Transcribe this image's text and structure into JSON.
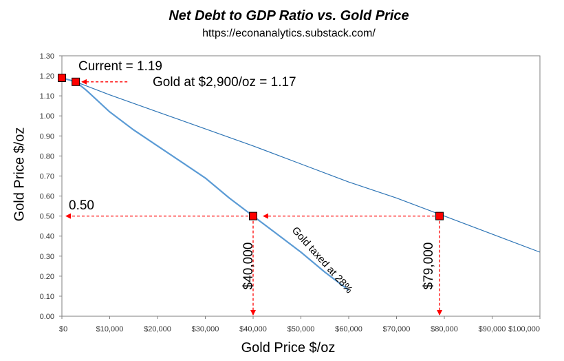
{
  "chart_data": {
    "type": "line",
    "title": "Net Debt to GDP Ratio vs. Gold Price",
    "subtitle": "https://econanalytics.substack.com/",
    "xlabel": "Gold Price $/oz",
    "ylabel": "Gold Price $/oz",
    "xlim": [
      0,
      100000
    ],
    "ylim": [
      0,
      1.3
    ],
    "x_tick_labels": [
      "$0",
      "$10,000",
      "$20,000",
      "$30,000",
      "$40,000",
      "$50,000",
      "$60,000",
      "$70,000",
      "$80,000",
      "$90,000",
      "$100,000"
    ],
    "y_tick_labels": [
      "0.00",
      "0.10",
      "0.20",
      "0.30",
      "0.40",
      "0.50",
      "0.60",
      "0.70",
      "0.80",
      "0.90",
      "1.00",
      "1.10",
      "1.20",
      "1.30"
    ],
    "grid": false,
    "series": [
      {
        "x": [
          0,
          2900,
          10000,
          20000,
          30000,
          40000,
          50000,
          60000,
          70000,
          80000,
          90000,
          100000
        ],
        "y": [
          1.19,
          1.17,
          1.105,
          1.02,
          0.935,
          0.85,
          0.76,
          0.67,
          0.59,
          0.5,
          0.41,
          0.32
        ],
        "color": "#2e75b6"
      },
      {
        "label": "Gold taxed at 28%",
        "x": [
          0,
          2900,
          5000,
          10000,
          15000,
          20000,
          25000,
          30000,
          35000,
          40000,
          45000,
          50000,
          55000,
          60000
        ],
        "y": [
          1.19,
          1.17,
          1.13,
          1.02,
          0.93,
          0.85,
          0.77,
          0.69,
          0.59,
          0.5,
          0.41,
          0.32,
          0.22,
          0.13
        ],
        "color": "#5b9bd5"
      }
    ],
    "markers": [
      {
        "x": 0,
        "y": 1.19,
        "label": "Current = 1.19"
      },
      {
        "x": 2900,
        "y": 1.17,
        "label": "Gold at $2,900/oz = 1.17"
      },
      {
        "x": 40000,
        "y": 0.5,
        "label": "$40,000"
      },
      {
        "x": 79000,
        "y": 0.5,
        "label": "$79,000"
      }
    ],
    "annotations": {
      "level_label": "0.50"
    },
    "colors": {
      "marker": "#ff0000",
      "arrow": "#ff0000",
      "axis": "#7f7f7f"
    }
  }
}
